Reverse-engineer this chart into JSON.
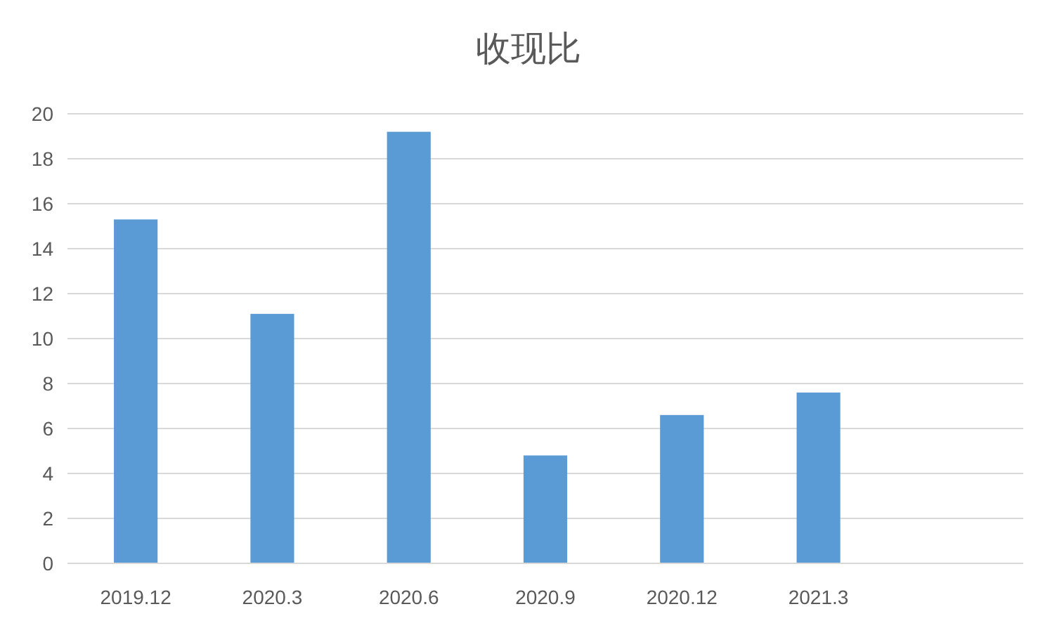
{
  "chart_data": {
    "type": "bar",
    "title": "收现比",
    "categories": [
      "2019.12",
      "2020.3",
      "2020.6",
      "2020.9",
      "2020.12",
      "2021.3",
      null
    ],
    "values": [
      15.3,
      11.1,
      19.2,
      4.8,
      6.6,
      7.6,
      null
    ],
    "color": "#5b9bd5",
    "ylim": [
      0,
      20
    ],
    "yticks": [
      0,
      2,
      4,
      6,
      8,
      10,
      12,
      14,
      16,
      18,
      20
    ],
    "grid": "y"
  }
}
